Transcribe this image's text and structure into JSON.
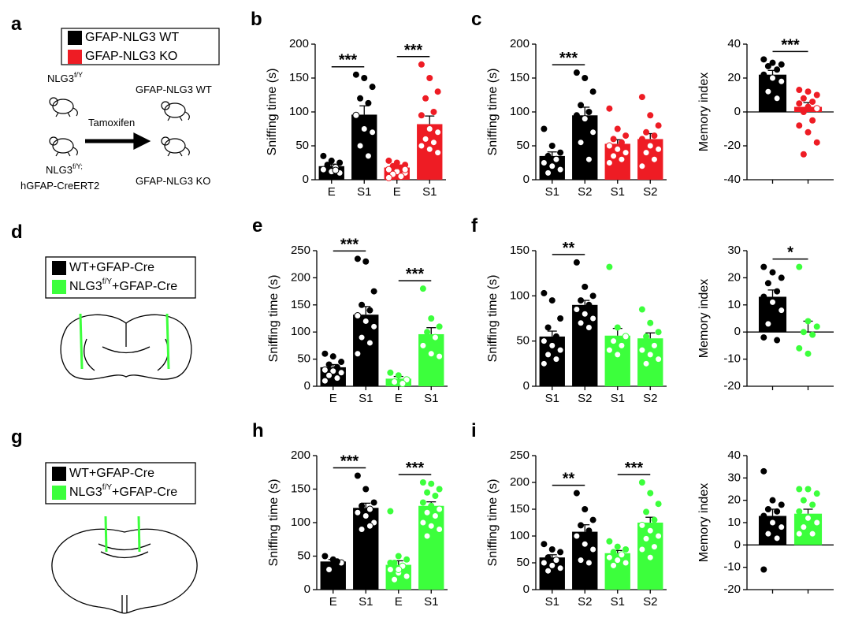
{
  "schemes": [
    {
      "panel": "a",
      "legend": [
        {
          "name": [
            "GFAP-NLG3 WT"
          ],
          "color": "#000000"
        },
        {
          "name": [
            "GFAP-NLG3 KO"
          ],
          "color": "#ee1c24"
        }
      ],
      "labels": {
        "floxed": {
          "base": "NLG3",
          "sup": "f/Y"
        },
        "wt": "GFAP-NLG3 WT",
        "treatment": "Tamoxifen",
        "cre": {
          "base": "NLG3",
          "sup": "f/Y;"
        },
        "cre_line": "hGFAP-CreERT2",
        "ko": "GFAP-NLG3 KO"
      }
    },
    {
      "panel": "d",
      "legend": [
        {
          "name": [
            "WT+GFAP-Cre"
          ],
          "color": "#000000"
        },
        {
          "name": [
            "NLG3",
            "f/Y",
            "+GFAP-Cre"
          ],
          "color": "#3cff3c"
        }
      ]
    },
    {
      "panel": "g",
      "legend": [
        {
          "name": [
            "WT+GFAP-Cre"
          ],
          "color": "#000000"
        },
        {
          "name": [
            "NLG3",
            "f/Y",
            "+GFAP-Cre"
          ],
          "color": "#3cff3c"
        }
      ]
    }
  ],
  "chart_data": [
    {
      "type": "bar",
      "panel": "b",
      "ylabel": "Sniffing time (s)",
      "categories": [
        "E",
        "S1",
        "E",
        "S1"
      ],
      "colors": [
        "#000000",
        "#000000",
        "#ee1c24",
        "#ee1c24"
      ],
      "values": [
        20,
        96,
        18,
        82
      ],
      "errors": [
        3,
        13,
        3,
        12
      ],
      "points": [
        [
          35,
          28,
          25,
          20,
          18,
          15,
          12,
          10,
          22,
          14
        ],
        [
          155,
          150,
          137,
          120,
          113,
          95,
          75,
          70,
          50,
          35
        ],
        [
          28,
          25,
          22,
          20,
          18,
          15,
          12,
          10,
          8,
          5,
          3,
          20,
          15
        ],
        [
          170,
          150,
          130,
          120,
          100,
          95,
          75,
          70,
          60,
          55,
          50,
          45,
          40
        ]
      ],
      "significance": [
        "***",
        "***"
      ],
      "ylim": [
        0,
        200
      ],
      "yticks": [
        0,
        50,
        100,
        150,
        200
      ]
    },
    {
      "type": "bar",
      "ylabel": "Sniffing time (s)",
      "categories": [
        "S1",
        "S2",
        "S1",
        "S2"
      ],
      "colors": [
        "#000000",
        "#000000",
        "#ee1c24",
        "#ee1c24"
      ],
      "values": [
        35,
        95,
        53,
        60
      ],
      "errors": [
        6,
        12,
        6,
        8
      ],
      "points": [
        [
          75,
          50,
          40,
          35,
          30,
          25,
          20,
          15,
          10,
          30
        ],
        [
          158,
          150,
          130,
          110,
          100,
          95,
          90,
          70,
          55,
          30
        ],
        [
          105,
          75,
          65,
          60,
          55,
          50,
          45,
          40,
          35,
          30,
          25
        ],
        [
          122,
          95,
          80,
          70,
          65,
          60,
          50,
          45,
          40,
          30,
          20
        ]
      ],
      "significance": [
        "***",
        null
      ],
      "ylim": [
        0,
        200
      ],
      "yticks": [
        0,
        50,
        100,
        150,
        200
      ],
      "panel": "c"
    },
    {
      "type": "bar",
      "ylabel": "Memory index",
      "categories": [
        null,
        null
      ],
      "colors": [
        "#000000",
        "#ee1c24"
      ],
      "values": [
        22,
        3
      ],
      "errors": [
        2.5,
        2.5
      ],
      "points": [
        [
          31,
          29,
          28,
          27,
          25,
          22,
          20,
          18,
          12,
          8
        ],
        [
          13,
          12,
          10,
          8,
          6,
          5,
          3,
          2,
          0,
          -5,
          -8,
          -12,
          -18,
          -25
        ]
      ],
      "significance": [
        "***"
      ],
      "ylim": [
        -40,
        40
      ],
      "yticks": [
        -40,
        -20,
        0,
        20,
        40
      ]
    },
    {
      "type": "bar",
      "panel": "e",
      "ylabel": "Sniffing time (s)",
      "categories": [
        "E",
        "S1",
        "E",
        "S1"
      ],
      "colors": [
        "#000000",
        "#000000",
        "#3cff3c",
        "#3cff3c"
      ],
      "values": [
        35,
        132,
        14,
        96
      ],
      "errors": [
        5,
        15,
        4,
        12
      ],
      "points": [
        [
          60,
          55,
          45,
          40,
          35,
          30,
          28,
          25,
          20,
          15,
          10
        ],
        [
          235,
          230,
          175,
          150,
          140,
          130,
          120,
          110,
          90,
          80,
          60
        ],
        [
          25,
          20,
          12,
          8,
          5
        ],
        [
          180,
          125,
          110,
          100,
          90,
          75,
          60,
          55
        ]
      ],
      "significance": [
        "***",
        "***"
      ],
      "ylim": [
        0,
        250
      ],
      "yticks": [
        0,
        50,
        100,
        150,
        200,
        250
      ]
    },
    {
      "type": "bar",
      "panel": "f",
      "ylabel": "Sniffing time (s)",
      "categories": [
        "S1",
        "S2",
        "S1",
        "S2"
      ],
      "colors": [
        "#000000",
        "#000000",
        "#3cff3c",
        "#3cff3c"
      ],
      "values": [
        55,
        90,
        56,
        53
      ],
      "errors": [
        6,
        5,
        8,
        6
      ],
      "points": [
        [
          103,
          95,
          75,
          65,
          55,
          50,
          45,
          40,
          35,
          30,
          25
        ],
        [
          137,
          110,
          100,
          95,
          90,
          85,
          80,
          75,
          70,
          65
        ],
        [
          132,
          65,
          55,
          50,
          45,
          40,
          35
        ],
        [
          85,
          70,
          60,
          55,
          45,
          40,
          35,
          30,
          25
        ]
      ],
      "significance": [
        "**",
        null
      ],
      "ylim": [
        0,
        150
      ],
      "yticks": [
        0,
        50,
        100,
        150
      ]
    },
    {
      "type": "bar",
      "ylabel": "Memory index",
      "categories": [
        null,
        null
      ],
      "colors": [
        "#000000",
        "#3cff3c"
      ],
      "values": [
        13,
        0
      ],
      "errors": [
        2.5,
        4
      ],
      "points": [
        [
          24,
          22,
          20,
          18,
          15,
          13,
          11,
          8,
          3,
          -3,
          -2
        ],
        [
          24,
          4,
          2,
          0,
          -1,
          -6,
          -8
        ]
      ],
      "significance": [
        "*"
      ],
      "ylim": [
        -20,
        30
      ],
      "yticks": [
        -20,
        -10,
        0,
        10,
        20,
        30
      ]
    },
    {
      "type": "bar",
      "panel": "h",
      "ylabel": "Sniffing time (s)",
      "categories": [
        "E",
        "S1",
        "E",
        "S1"
      ],
      "colors": [
        "#000000",
        "#000000",
        "#3cff3c",
        "#3cff3c"
      ],
      "values": [
        42,
        122,
        37,
        125
      ],
      "errors": [
        3,
        7,
        6,
        6
      ],
      "points": [
        [
          50,
          45,
          40,
          30,
          42
        ],
        [
          170,
          150,
          130,
          125,
          120,
          115,
          110,
          100,
          90,
          95
        ],
        [
          117,
          50,
          45,
          40,
          35,
          30,
          25,
          20,
          15,
          35,
          40,
          30
        ],
        [
          160,
          158,
          150,
          145,
          140,
          130,
          125,
          120,
          115,
          110,
          100,
          95,
          90,
          80
        ]
      ],
      "significance": [
        "***",
        "***"
      ],
      "ylim": [
        0,
        200
      ],
      "yticks": [
        0,
        50,
        100,
        150,
        200
      ]
    },
    {
      "type": "bar",
      "panel": "i",
      "ylabel": "Sniffing time (s)",
      "categories": [
        "S1",
        "S2",
        "S1",
        "S2"
      ],
      "colors": [
        "#000000",
        "#000000",
        "#3cff3c",
        "#3cff3c"
      ],
      "values": [
        60,
        108,
        68,
        125
      ],
      "errors": [
        5,
        13,
        5,
        10
      ],
      "points": [
        [
          85,
          75,
          70,
          60,
          55,
          50,
          45,
          40,
          35
        ],
        [
          180,
          150,
          130,
          120,
          110,
          100,
          85,
          75,
          55,
          50
        ],
        [
          90,
          80,
          75,
          70,
          65,
          60,
          55,
          50,
          45
        ],
        [
          200,
          180,
          160,
          145,
          130,
          120,
          110,
          100,
          95,
          80,
          75,
          60
        ]
      ],
      "significance": [
        "**",
        "***"
      ],
      "ylim": [
        0,
        250
      ],
      "yticks": [
        0,
        50,
        100,
        150,
        200,
        250
      ]
    },
    {
      "type": "bar",
      "ylabel": "Memory index",
      "categories": [
        null,
        null
      ],
      "colors": [
        "#000000",
        "#3cff3c"
      ],
      "values": [
        13,
        14
      ],
      "errors": [
        3,
        2
      ],
      "points": [
        [
          33,
          20,
          18,
          16,
          15,
          13,
          10,
          8,
          5,
          3,
          -11
        ],
        [
          25,
          25,
          23,
          20,
          18,
          15,
          12,
          10,
          8,
          5,
          5
        ]
      ],
      "significance": [
        null
      ],
      "ylim": [
        -20,
        40
      ],
      "yticks": [
        -20,
        -10,
        0,
        10,
        20,
        30,
        40
      ]
    }
  ]
}
